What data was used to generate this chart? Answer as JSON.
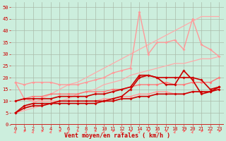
{
  "x": [
    0,
    1,
    2,
    3,
    4,
    5,
    6,
    7,
    8,
    9,
    10,
    11,
    12,
    13,
    14,
    15,
    16,
    17,
    18,
    19,
    20,
    21,
    22,
    23
  ],
  "lines": [
    {
      "y": [
        5,
        7,
        9,
        11,
        13,
        15,
        17,
        18,
        20,
        22,
        24,
        26,
        28,
        30,
        32,
        34,
        36,
        38,
        40,
        42,
        44,
        46,
        46,
        46
      ],
      "color": "#ffaaaa",
      "lw": 0.9,
      "marker": null,
      "ms": 0,
      "zorder": 2
    },
    {
      "y": [
        5,
        6,
        7,
        8,
        9,
        10,
        11,
        13,
        14,
        15,
        17,
        18,
        19,
        21,
        22,
        23,
        24,
        25,
        26,
        26,
        27,
        28,
        28,
        29
      ],
      "color": "#ffaaaa",
      "lw": 0.9,
      "marker": null,
      "ms": 0,
      "zorder": 2
    },
    {
      "y": [
        18,
        17,
        18,
        18,
        18,
        17,
        17,
        17,
        18,
        19,
        20,
        22,
        23,
        24,
        48,
        30,
        35,
        35,
        36,
        32,
        45,
        34,
        32,
        29
      ],
      "color": "#ff9999",
      "lw": 1.0,
      "marker": "D",
      "ms": 2.0,
      "zorder": 3
    },
    {
      "y": [
        18,
        11,
        10,
        10,
        10,
        10,
        10,
        10,
        10,
        10,
        11,
        11,
        12,
        12,
        13,
        13,
        14,
        14,
        13,
        13,
        14,
        14,
        14,
        16
      ],
      "color": "#ff9999",
      "lw": 1.0,
      "marker": "D",
      "ms": 2.0,
      "zorder": 3
    },
    {
      "y": [
        10,
        11,
        12,
        12,
        13,
        13,
        13,
        13,
        14,
        14,
        14,
        15,
        15,
        16,
        17,
        17,
        17,
        18,
        17,
        17,
        18,
        18,
        18,
        20
      ],
      "color": "#ff7777",
      "lw": 1.0,
      "marker": "D",
      "ms": 2.0,
      "zorder": 3
    },
    {
      "y": [
        5,
        8,
        9,
        9,
        9,
        10,
        10,
        10,
        10,
        10,
        10,
        11,
        12,
        15,
        20,
        21,
        20,
        17,
        17,
        23,
        19,
        13,
        14,
        15
      ],
      "color": "#cc0000",
      "lw": 1.2,
      "marker": "D",
      "ms": 2.0,
      "zorder": 4
    },
    {
      "y": [
        5,
        7,
        8,
        8,
        9,
        9,
        9,
        9,
        9,
        9,
        10,
        10,
        11,
        11,
        12,
        12,
        13,
        13,
        13,
        13,
        14,
        14,
        14,
        16
      ],
      "color": "#cc0000",
      "lw": 1.2,
      "marker": "D",
      "ms": 2.0,
      "zorder": 4
    },
    {
      "y": [
        10,
        11,
        11,
        11,
        11,
        12,
        12,
        12,
        12,
        13,
        13,
        14,
        15,
        16,
        21,
        21,
        20,
        20,
        20,
        20,
        20,
        19,
        15,
        16
      ],
      "color": "#cc0000",
      "lw": 1.2,
      "marker": "D",
      "ms": 2.0,
      "zorder": 4
    }
  ],
  "background_color": "#cceedd",
  "grid_color": "#aabbaa",
  "xlabel": "Vent moyen/en rafales ( km/h )",
  "xlabel_color": "#cc0000",
  "xlabel_fontsize": 6,
  "xlim": [
    -0.5,
    23.5
  ],
  "ylim": [
    0,
    52
  ],
  "yticks": [
    0,
    5,
    10,
    15,
    20,
    25,
    30,
    35,
    40,
    45,
    50
  ],
  "xticks": [
    0,
    1,
    2,
    3,
    4,
    5,
    6,
    7,
    8,
    9,
    10,
    11,
    12,
    13,
    14,
    15,
    16,
    17,
    18,
    19,
    20,
    21,
    22,
    23
  ],
  "tick_color": "#cc0000",
  "tick_fontsize": 5.0,
  "arrow_color": "#ff6666",
  "axisline_color": "#cc0000"
}
